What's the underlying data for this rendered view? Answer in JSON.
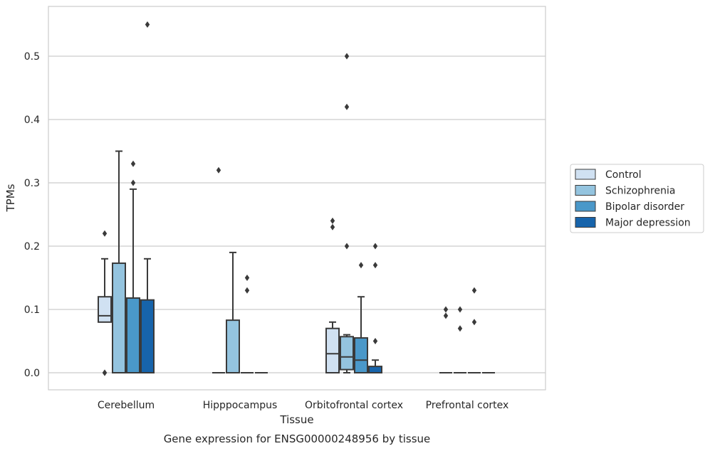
{
  "caption": "Gene expression for ENSG00000248956 by tissue",
  "chart_data": {
    "type": "boxplot",
    "xlabel": "Tissue",
    "ylabel": "TPMs",
    "ylim": [
      -0.027,
      0.579
    ],
    "yticks": [
      0.0,
      0.1,
      0.2,
      0.3,
      0.4,
      0.5
    ],
    "ytick_labels": [
      "0.0",
      "0.1",
      "0.2",
      "0.3",
      "0.4",
      "0.5"
    ],
    "grid": "horizontal",
    "legend_position": "right",
    "categories": [
      "Cerebellum",
      "Hipppocampus",
      "Orbitofrontal cortex",
      "Prefrontal cortex"
    ],
    "series": [
      {
        "name": "Control",
        "color": "#d0e1f2",
        "boxes": [
          {
            "q1": 0.08,
            "median": 0.09,
            "q3": 0.12,
            "whislo": 0.08,
            "whishi": 0.18,
            "fliers": [
              0.22,
              0.0,
              0.0
            ]
          },
          {
            "q1": 0.0,
            "median": 0.0,
            "q3": 0.0,
            "whislo": 0.0,
            "whishi": 0.0,
            "fliers": [
              0.32
            ]
          },
          {
            "q1": 0.0,
            "median": 0.03,
            "q3": 0.07,
            "whislo": 0.0,
            "whishi": 0.08,
            "fliers": [
              0.24,
              0.23
            ]
          },
          {
            "q1": 0.0,
            "median": 0.0,
            "q3": 0.0,
            "whislo": 0.0,
            "whishi": 0.0,
            "fliers": [
              0.1,
              0.09
            ]
          }
        ]
      },
      {
        "name": "Schizophrenia",
        "color": "#94c4df",
        "boxes": [
          {
            "q1": 0.0,
            "median": 0.0,
            "q3": 0.173,
            "whislo": 0.0,
            "whishi": 0.35,
            "fliers": []
          },
          {
            "q1": 0.0,
            "median": 0.0,
            "q3": 0.083,
            "whislo": 0.0,
            "whishi": 0.19,
            "fliers": []
          },
          {
            "q1": 0.005,
            "median": 0.025,
            "q3": 0.057,
            "whislo": 0.0,
            "whishi": 0.06,
            "fliers": [
              0.5,
              0.42,
              0.2
            ]
          },
          {
            "q1": 0.0,
            "median": 0.0,
            "q3": 0.0,
            "whislo": 0.0,
            "whishi": 0.0,
            "fliers": [
              0.1,
              0.07
            ]
          }
        ]
      },
      {
        "name": "Bipolar disorder",
        "color": "#4a98c9",
        "boxes": [
          {
            "q1": 0.0,
            "median": 0.0,
            "q3": 0.118,
            "whislo": 0.0,
            "whishi": 0.29,
            "fliers": [
              0.33,
              0.3
            ]
          },
          {
            "q1": 0.0,
            "median": 0.0,
            "q3": 0.0,
            "whislo": 0.0,
            "whishi": 0.0,
            "fliers": [
              0.15,
              0.13
            ]
          },
          {
            "q1": 0.0,
            "median": 0.02,
            "q3": 0.055,
            "whislo": 0.0,
            "whishi": 0.12,
            "fliers": [
              0.17
            ]
          },
          {
            "q1": 0.0,
            "median": 0.0,
            "q3": 0.0,
            "whislo": 0.0,
            "whishi": 0.0,
            "fliers": [
              0.13,
              0.08
            ]
          }
        ]
      },
      {
        "name": "Major depression",
        "color": "#1764ab",
        "boxes": [
          {
            "q1": 0.0,
            "median": 0.0,
            "q3": 0.115,
            "whislo": 0.0,
            "whishi": 0.18,
            "fliers": [
              0.55
            ]
          },
          {
            "q1": 0.0,
            "median": 0.0,
            "q3": 0.0,
            "whislo": 0.0,
            "whishi": 0.0,
            "fliers": []
          },
          {
            "q1": 0.0,
            "median": 0.0,
            "q3": 0.01,
            "whislo": 0.0,
            "whishi": 0.02,
            "fliers": [
              0.2,
              0.17,
              0.05
            ]
          },
          {
            "q1": 0.0,
            "median": 0.0,
            "q3": 0.0,
            "whislo": 0.0,
            "whishi": 0.0,
            "fliers": []
          }
        ]
      }
    ]
  },
  "colors": {
    "frame": "#cccccc",
    "grid": "#cccccc",
    "line": "#3a3a3a",
    "text": "#262626"
  }
}
